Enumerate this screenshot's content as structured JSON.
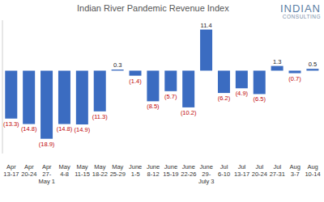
{
  "chart_data": {
    "type": "bar",
    "title": "Indian River Pandemic Revenue Index",
    "annotations": [
      "INDIAN",
      "CONSULTING"
    ],
    "categories": [
      "Apr\n13-17",
      "Apr\n20-24",
      "Apr\n27-\nMay 1",
      "May\n4-8",
      "May\n11-15",
      "May\n18-22",
      "May\n25-29",
      "June\n1-5",
      "June\n8-12",
      "June\n15-19",
      "June\n22-26",
      "June\n29-\nJuly 3",
      "Jul\n6-10",
      "Jul\n13-17",
      "Jul\n20-24",
      "Jul\n27-31",
      "Aug\n3-7",
      "Aug\n10-14"
    ],
    "values": [
      -13.3,
      -14.8,
      -18.9,
      -14.8,
      -14.9,
      -11.3,
      0.3,
      -1.4,
      -8.5,
      -5.7,
      -10.2,
      11.4,
      -6.2,
      -4.9,
      -6.5,
      1.3,
      -0.7,
      0.5
    ],
    "value_labels": [
      "(13.3)",
      "(14.8)",
      "(18.9)",
      "(14.8)",
      "(14.9)",
      "(11.3)",
      "0.3",
      "(1.4)",
      "(8.5)",
      "(5.7)",
      "(10.2)",
      "11.4",
      "(6.2)",
      "(4.9)",
      "(6.5)",
      "1.3",
      "(0.7)",
      "0.5"
    ],
    "color": "#3b6cc1",
    "ylim": [
      -23,
      14
    ],
    "tick_labels": false,
    "data_labels": true,
    "grid": false
  }
}
